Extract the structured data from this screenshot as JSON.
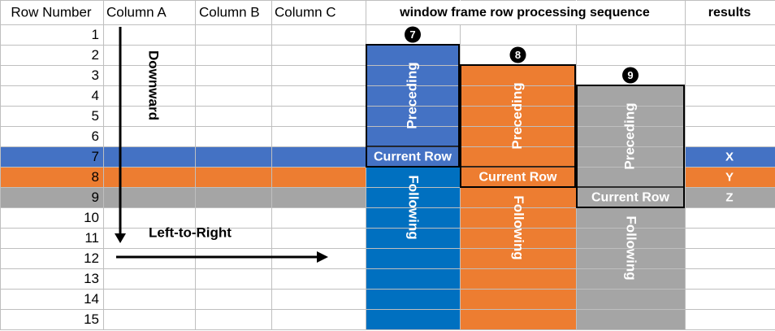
{
  "header": {
    "columns": [
      "Row Number",
      "Column A",
      "Column B",
      "Column C",
      "window frame row processing sequence",
      "results"
    ]
  },
  "rows": [
    1,
    2,
    3,
    4,
    5,
    6,
    7,
    8,
    9,
    10,
    11,
    12,
    13,
    14,
    15
  ],
  "frames": [
    {
      "badge": "7",
      "preceding": "Preceding",
      "current": "Current Row",
      "following": "Following"
    },
    {
      "badge": "8",
      "preceding": "Preceding",
      "current": "Current Row",
      "following": "Following"
    },
    {
      "badge": "9",
      "preceding": "Preceding",
      "current": "Current Row",
      "following": "Following"
    }
  ],
  "results": [
    "X",
    "Y",
    "Z"
  ],
  "annotations": {
    "downward": "Downward",
    "left_to_right": "Left-to-Right"
  }
}
